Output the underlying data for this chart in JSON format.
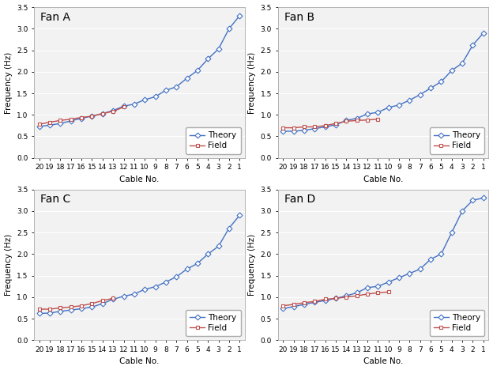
{
  "fans": [
    "Fan A",
    "Fan B",
    "Fan C",
    "Fan D"
  ],
  "cable_nos": [
    20,
    19,
    18,
    17,
    16,
    15,
    14,
    13,
    12,
    11,
    10,
    9,
    8,
    7,
    6,
    5,
    4,
    3,
    2,
    1
  ],
  "theory": {
    "Fan A": [
      0.73,
      0.76,
      0.8,
      0.86,
      0.92,
      0.97,
      1.03,
      1.1,
      1.2,
      1.25,
      1.35,
      1.42,
      1.57,
      1.65,
      1.85,
      2.03,
      2.3,
      2.53,
      3.0,
      3.3
    ],
    "Fan B": [
      0.62,
      0.62,
      0.64,
      0.68,
      0.72,
      0.77,
      0.87,
      0.92,
      1.02,
      1.06,
      1.17,
      1.23,
      1.34,
      1.47,
      1.62,
      1.77,
      2.03,
      2.2,
      2.62,
      2.9
    ],
    "Fan C": [
      0.62,
      0.63,
      0.67,
      0.7,
      0.73,
      0.77,
      0.85,
      0.95,
      1.02,
      1.07,
      1.18,
      1.24,
      1.35,
      1.47,
      1.65,
      1.78,
      2.0,
      2.18,
      2.6,
      2.9
    ],
    "Fan D": [
      0.73,
      0.78,
      0.83,
      0.88,
      0.92,
      0.97,
      1.03,
      1.1,
      1.22,
      1.25,
      1.35,
      1.45,
      1.55,
      1.65,
      1.88,
      2.0,
      2.5,
      3.0,
      3.25,
      3.3
    ]
  },
  "field": {
    "Fan A": {
      "cables": [
        20,
        19,
        18,
        17,
        16,
        15,
        14,
        13,
        12
      ],
      "values": [
        0.78,
        0.83,
        0.87,
        0.9,
        0.94,
        0.97,
        1.03,
        1.08,
        1.18
      ]
    },
    "Fan B": {
      "cables": [
        20,
        19,
        18,
        17,
        16,
        15,
        14,
        13,
        12,
        11
      ],
      "values": [
        0.7,
        0.7,
        0.72,
        0.72,
        0.75,
        0.8,
        0.85,
        0.87,
        0.88,
        0.9
      ]
    },
    "Fan C": {
      "cables": [
        20,
        19,
        18,
        17,
        16,
        15,
        14,
        13
      ],
      "values": [
        0.72,
        0.72,
        0.75,
        0.77,
        0.8,
        0.85,
        0.92,
        0.97
      ]
    },
    "Fan D": {
      "cables": [
        20,
        19,
        18,
        17,
        16,
        15,
        14,
        13,
        12,
        11,
        10
      ],
      "values": [
        0.8,
        0.83,
        0.87,
        0.9,
        0.95,
        0.97,
        1.0,
        1.03,
        1.07,
        1.1,
        1.12
      ]
    }
  },
  "ylim": [
    0.0,
    3.5
  ],
  "yticks": [
    0.0,
    0.5,
    1.0,
    1.5,
    2.0,
    2.5,
    3.0,
    3.5
  ],
  "theory_color": "#4472C4",
  "field_color": "#C0504D",
  "plot_bg_color": "#F2F2F2",
  "fig_bg_color": "#FFFFFF",
  "grid_color": "#FFFFFF",
  "spine_color": "#AAAAAA",
  "title_fontsize": 10,
  "label_fontsize": 7.5,
  "tick_fontsize": 6.5,
  "legend_fontsize": 7.5
}
